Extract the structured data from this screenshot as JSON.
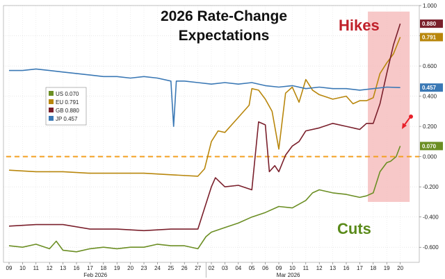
{
  "chart_data": {
    "type": "line",
    "title_lines": [
      "2026 Rate-Change",
      "Expectations"
    ],
    "xlabel": "",
    "ylabel": "",
    "ylim": [
      -0.7,
      1.0
    ],
    "y_ticks": [
      1.0,
      0.8,
      0.6,
      0.4,
      0.2,
      0.0,
      -0.2,
      -0.4,
      -0.6
    ],
    "y_tick_labels": [
      "1.000",
      "0.800",
      "0.600",
      "0.400",
      "0.200",
      "0.000",
      "-0.200",
      "-0.400",
      "-0.600"
    ],
    "x_range": [
      0,
      30
    ],
    "x_ticks": [
      {
        "x": 0,
        "label": "09"
      },
      {
        "x": 1,
        "label": "10"
      },
      {
        "x": 2,
        "label": "11"
      },
      {
        "x": 3,
        "label": "12"
      },
      {
        "x": 4,
        "label": "13"
      },
      {
        "x": 5,
        "label": "16"
      },
      {
        "x": 6,
        "label": "17"
      },
      {
        "x": 7,
        "label": "18"
      },
      {
        "x": 8,
        "label": "19"
      },
      {
        "x": 9,
        "label": "20"
      },
      {
        "x": 10,
        "label": "23"
      },
      {
        "x": 11,
        "label": "24"
      },
      {
        "x": 12,
        "label": "25"
      },
      {
        "x": 13,
        "label": "26"
      },
      {
        "x": 14,
        "label": "27"
      },
      {
        "x": 15,
        "label": "02"
      },
      {
        "x": 16,
        "label": "03"
      },
      {
        "x": 17,
        "label": "04"
      },
      {
        "x": 18,
        "label": "05"
      },
      {
        "x": 19,
        "label": "06"
      },
      {
        "x": 20,
        "label": "09"
      },
      {
        "x": 21,
        "label": "10"
      },
      {
        "x": 22,
        "label": "11"
      },
      {
        "x": 23,
        "label": "12"
      },
      {
        "x": 24,
        "label": "13"
      },
      {
        "x": 25,
        "label": "16"
      },
      {
        "x": 26,
        "label": "17"
      },
      {
        "x": 27,
        "label": "18"
      },
      {
        "x": 28,
        "label": "19"
      },
      {
        "x": 29,
        "label": "20"
      }
    ],
    "months": [
      {
        "x": 6.4,
        "label": "Feb 2026"
      },
      {
        "x": 20.7,
        "label": "Mar 2026"
      }
    ],
    "month_separators": [
      14.6
    ],
    "series": [
      {
        "name": "US",
        "legend": "US 0.070",
        "last_label": "0.070",
        "color": "#6b8e23",
        "x": [
          0,
          1,
          2,
          3,
          3.5,
          4,
          5,
          6,
          7,
          8,
          9,
          10,
          11,
          12,
          13,
          14,
          14.6,
          15,
          16,
          17,
          18,
          19,
          20,
          21,
          22,
          22.5,
          23,
          24,
          25,
          26,
          26.5,
          27,
          27.5,
          28,
          28.3,
          28.7,
          29
        ],
        "values": [
          -0.59,
          -0.6,
          -0.58,
          -0.61,
          -0.56,
          -0.62,
          -0.63,
          -0.61,
          -0.6,
          -0.61,
          -0.6,
          -0.6,
          -0.58,
          -0.59,
          -0.59,
          -0.61,
          -0.53,
          -0.5,
          -0.47,
          -0.44,
          -0.4,
          -0.37,
          -0.33,
          -0.34,
          -0.29,
          -0.24,
          -0.22,
          -0.24,
          -0.25,
          -0.27,
          -0.26,
          -0.24,
          -0.1,
          -0.04,
          -0.03,
          0.0,
          0.07
        ]
      },
      {
        "name": "EU",
        "legend": "EU 0.791",
        "last_label": "0.791",
        "color": "#b8860b",
        "x": [
          0,
          2,
          4,
          6,
          8,
          10,
          12,
          14,
          14.5,
          15,
          15.5,
          16,
          17,
          17.8,
          18,
          18.5,
          19,
          19.5,
          20,
          20.5,
          21,
          21.5,
          22,
          22.5,
          23,
          24,
          25,
          25.5,
          26,
          26.5,
          27,
          27.5,
          28,
          28.5,
          29
        ],
        "values": [
          -0.09,
          -0.1,
          -0.1,
          -0.11,
          -0.11,
          -0.11,
          -0.12,
          -0.13,
          -0.08,
          0.1,
          0.17,
          0.16,
          0.26,
          0.34,
          0.45,
          0.44,
          0.38,
          0.3,
          0.05,
          0.42,
          0.46,
          0.36,
          0.51,
          0.44,
          0.41,
          0.38,
          0.4,
          0.35,
          0.37,
          0.37,
          0.39,
          0.55,
          0.62,
          0.68,
          0.791
        ]
      },
      {
        "name": "GB",
        "legend": "GB 0.880",
        "last_label": "0.880",
        "color": "#7a1f2b",
        "x": [
          0,
          2,
          4,
          6,
          8,
          10,
          12,
          14,
          14.5,
          15,
          15.3,
          16,
          17,
          18,
          18.5,
          19,
          19.3,
          19.7,
          20,
          20.5,
          21,
          21.5,
          22,
          23,
          24,
          25,
          26,
          26.5,
          27,
          27.5,
          28,
          28.5,
          29
        ],
        "values": [
          -0.46,
          -0.45,
          -0.45,
          -0.48,
          -0.48,
          -0.49,
          -0.48,
          -0.48,
          -0.34,
          -0.2,
          -0.14,
          -0.2,
          -0.19,
          -0.22,
          0.23,
          0.21,
          -0.1,
          -0.06,
          -0.1,
          0.01,
          0.07,
          0.1,
          0.17,
          0.19,
          0.22,
          0.2,
          0.18,
          0.22,
          0.22,
          0.35,
          0.55,
          0.74,
          0.88
        ]
      },
      {
        "name": "JP",
        "legend": "JP 0.457",
        "last_label": "0.457",
        "color": "#3a78b5",
        "x": [
          0,
          1,
          2,
          3,
          4,
          5,
          6,
          7,
          8,
          9,
          10,
          11,
          12,
          12.2,
          12.4,
          13,
          14,
          15,
          16,
          17,
          18,
          19,
          20,
          21,
          22,
          23,
          24,
          25,
          26,
          27,
          28,
          29
        ],
        "values": [
          0.57,
          0.57,
          0.58,
          0.57,
          0.56,
          0.55,
          0.54,
          0.53,
          0.53,
          0.52,
          0.53,
          0.52,
          0.5,
          0.2,
          0.5,
          0.5,
          0.49,
          0.48,
          0.49,
          0.48,
          0.49,
          0.47,
          0.46,
          0.47,
          0.45,
          0.46,
          0.45,
          0.45,
          0.44,
          0.45,
          0.46,
          0.457
        ]
      }
    ],
    "legend": {
      "placement": "left-middle"
    },
    "reference_line": {
      "value": 0.0,
      "color": "#f4a020",
      "style": "dashed"
    },
    "highlight_band": {
      "x_start": 26.6,
      "x_end": 29.7,
      "y_start": -0.3,
      "y_end": 0.96,
      "color": "#f4b6b6"
    },
    "annotations": [
      {
        "text": "Hikes",
        "color": "#c0202a"
      },
      {
        "text": "Cuts",
        "color": "#5a8a1a"
      }
    ],
    "grid": true
  }
}
